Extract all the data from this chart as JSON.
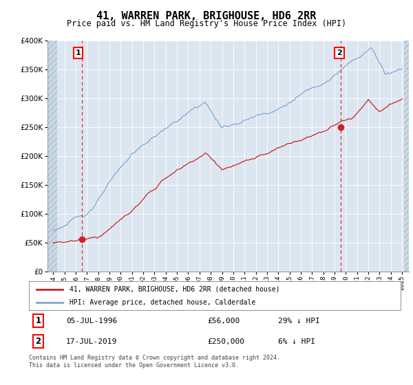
{
  "title": "41, WARREN PARK, BRIGHOUSE, HD6 2RR",
  "subtitle": "Price paid vs. HM Land Registry's House Price Index (HPI)",
  "ylim": [
    0,
    400000
  ],
  "yticks": [
    0,
    50000,
    100000,
    150000,
    200000,
    250000,
    300000,
    350000,
    400000
  ],
  "hpi_color": "#7fa8d0",
  "price_color": "#cc2222",
  "sale1_year": 1996.54,
  "sale1_price": 56000,
  "sale2_year": 2019.54,
  "sale2_price": 250000,
  "legend_line1": "41, WARREN PARK, BRIGHOUSE, HD6 2RR (detached house)",
  "legend_line2": "HPI: Average price, detached house, Calderdale",
  "table_row1": [
    "1",
    "05-JUL-1996",
    "£56,000",
    "29% ↓ HPI"
  ],
  "table_row2": [
    "2",
    "17-JUL-2019",
    "£250,000",
    "6% ↓ HPI"
  ],
  "footer": "Contains HM Land Registry data © Crown copyright and database right 2024.\nThis data is licensed under the Open Government Licence v3.0.",
  "bg_color": "#dce6f1",
  "grid_color": "#ffffff"
}
